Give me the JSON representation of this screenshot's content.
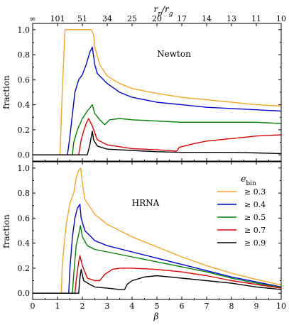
{
  "chart_data": [
    {
      "type": "line",
      "panel": "top",
      "annotation": "Newton",
      "ylabel": "fraction",
      "xlim": [
        0,
        10
      ],
      "ylim": [
        -0.05,
        1.05
      ],
      "yticks": [
        "0.0",
        "0.2",
        "0.4",
        "0.6",
        "0.8",
        "1.0"
      ],
      "top_axis": {
        "label": "r_p/r_g",
        "tick_labels": [
          "∞",
          "101",
          "51",
          "34",
          "25",
          "20",
          "17",
          "14",
          "13",
          "11",
          "10"
        ]
      },
      "series": [
        {
          "name": "≥ 0.3",
          "color": "#f5a623",
          "points": [
            [
              0,
              0
            ],
            [
              1.1,
              0
            ],
            [
              1.2,
              0.55
            ],
            [
              1.3,
              1.0
            ],
            [
              2.35,
              1.0
            ],
            [
              2.45,
              0.96
            ],
            [
              2.5,
              0.86
            ],
            [
              2.7,
              0.72
            ],
            [
              3.0,
              0.63
            ],
            [
              3.5,
              0.57
            ],
            [
              4.0,
              0.53
            ],
            [
              5.0,
              0.49
            ],
            [
              6.0,
              0.46
            ],
            [
              7.0,
              0.44
            ],
            [
              8.0,
              0.42
            ],
            [
              9.0,
              0.4
            ],
            [
              10.0,
              0.39
            ]
          ]
        },
        {
          "name": "≥ 0.4",
          "color": "#0000e0",
          "points": [
            [
              0,
              0
            ],
            [
              1.4,
              0
            ],
            [
              1.5,
              0.15
            ],
            [
              1.7,
              0.5
            ],
            [
              1.85,
              0.6
            ],
            [
              2.0,
              0.64
            ],
            [
              2.15,
              0.72
            ],
            [
              2.3,
              0.82
            ],
            [
              2.4,
              0.86
            ],
            [
              2.5,
              0.72
            ],
            [
              2.6,
              0.65
            ],
            [
              3.0,
              0.57
            ],
            [
              3.5,
              0.5
            ],
            [
              4.0,
              0.46
            ],
            [
              5.0,
              0.42
            ],
            [
              6.0,
              0.4
            ],
            [
              7.0,
              0.38
            ],
            [
              8.0,
              0.37
            ],
            [
              9.0,
              0.36
            ],
            [
              10.0,
              0.35
            ]
          ]
        },
        {
          "name": "≥ 0.5",
          "color": "#008000",
          "points": [
            [
              0,
              0
            ],
            [
              1.6,
              0
            ],
            [
              1.65,
              0.1
            ],
            [
              1.8,
              0.2
            ],
            [
              2.0,
              0.29
            ],
            [
              2.2,
              0.35
            ],
            [
              2.4,
              0.4
            ],
            [
              2.5,
              0.33
            ],
            [
              2.7,
              0.28
            ],
            [
              2.9,
              0.24
            ],
            [
              3.0,
              0.26
            ],
            [
              3.1,
              0.28
            ],
            [
              3.5,
              0.29
            ],
            [
              4.0,
              0.28
            ],
            [
              5.0,
              0.27
            ],
            [
              6.0,
              0.26
            ],
            [
              7.0,
              0.26
            ],
            [
              8.0,
              0.26
            ],
            [
              9.0,
              0.26
            ],
            [
              10.0,
              0.25
            ]
          ]
        },
        {
          "name": "≥ 0.7",
          "color": "#e00000",
          "points": [
            [
              0,
              0
            ],
            [
              1.85,
              0
            ],
            [
              1.95,
              0.12
            ],
            [
              2.05,
              0.19
            ],
            [
              2.15,
              0.25
            ],
            [
              2.25,
              0.29
            ],
            [
              2.4,
              0.23
            ],
            [
              2.6,
              0.12
            ],
            [
              3.0,
              0.08
            ],
            [
              4.0,
              0.05
            ],
            [
              5.0,
              0.04
            ],
            [
              5.8,
              0.03
            ],
            [
              5.9,
              0.06
            ],
            [
              6.5,
              0.09
            ],
            [
              7.0,
              0.11
            ],
            [
              8.0,
              0.13
            ],
            [
              9.0,
              0.15
            ],
            [
              10.0,
              0.16
            ]
          ]
        },
        {
          "name": "≥ 0.9",
          "color": "#000000",
          "points": [
            [
              0,
              0
            ],
            [
              2.2,
              0
            ],
            [
              2.3,
              0.08
            ],
            [
              2.4,
              0.19
            ],
            [
              2.45,
              0.12
            ],
            [
              2.6,
              0.07
            ],
            [
              3.0,
              0.045
            ],
            [
              4.0,
              0.035
            ],
            [
              5.0,
              0.025
            ],
            [
              6.0,
              0.02
            ],
            [
              7.0,
              0.02
            ],
            [
              8.0,
              0.02
            ],
            [
              9.0,
              0.015
            ],
            [
              10.0,
              0.01
            ]
          ]
        }
      ]
    },
    {
      "type": "line",
      "panel": "bottom",
      "annotation": "HRNA",
      "xlabel": "β",
      "ylabel": "fraction",
      "xlim": [
        0,
        10
      ],
      "ylim": [
        -0.05,
        1.05
      ],
      "xticks": [
        "0",
        "1",
        "2",
        "3",
        "4",
        "5",
        "6",
        "7",
        "8",
        "9",
        "10"
      ],
      "yticks": [
        "0.0",
        "0.2",
        "0.4",
        "0.6",
        "0.8",
        "1.0"
      ],
      "legend": {
        "title": "e_bin",
        "placement": "right"
      },
      "series": [
        {
          "name": "≥ 0.3",
          "color": "#f5a623",
          "points": [
            [
              0,
              0
            ],
            [
              1.15,
              0
            ],
            [
              1.2,
              0.25
            ],
            [
              1.35,
              0.55
            ],
            [
              1.5,
              0.72
            ],
            [
              1.65,
              0.8
            ],
            [
              1.75,
              0.92
            ],
            [
              1.85,
              0.98
            ],
            [
              1.93,
              1.0
            ],
            [
              2.0,
              0.88
            ],
            [
              2.1,
              0.75
            ],
            [
              2.5,
              0.63
            ],
            [
              3.0,
              0.55
            ],
            [
              4.0,
              0.45
            ],
            [
              5.0,
              0.37
            ],
            [
              6.0,
              0.29
            ],
            [
              7.0,
              0.22
            ],
            [
              8.0,
              0.16
            ],
            [
              9.0,
              0.11
            ],
            [
              10.0,
              0.065
            ]
          ]
        },
        {
          "name": "≥ 0.4",
          "color": "#0000e0",
          "points": [
            [
              0,
              0
            ],
            [
              1.45,
              0
            ],
            [
              1.5,
              0.2
            ],
            [
              1.6,
              0.45
            ],
            [
              1.7,
              0.6
            ],
            [
              1.8,
              0.68
            ],
            [
              1.9,
              0.71
            ],
            [
              1.95,
              0.6
            ],
            [
              2.1,
              0.5
            ],
            [
              2.5,
              0.42
            ],
            [
              3.0,
              0.38
            ],
            [
              4.0,
              0.33
            ],
            [
              5.0,
              0.28
            ],
            [
              6.0,
              0.23
            ],
            [
              7.0,
              0.18
            ],
            [
              8.0,
              0.13
            ],
            [
              9.0,
              0.09
            ],
            [
              10.0,
              0.05
            ]
          ]
        },
        {
          "name": "≥ 0.5",
          "color": "#008000",
          "points": [
            [
              0,
              0
            ],
            [
              1.6,
              0
            ],
            [
              1.65,
              0.15
            ],
            [
              1.75,
              0.38
            ],
            [
              1.85,
              0.47
            ],
            [
              1.92,
              0.54
            ],
            [
              2.0,
              0.45
            ],
            [
              2.2,
              0.38
            ],
            [
              2.5,
              0.35
            ],
            [
              3.0,
              0.33
            ],
            [
              4.0,
              0.29
            ],
            [
              5.0,
              0.25
            ],
            [
              6.0,
              0.21
            ],
            [
              7.0,
              0.17
            ],
            [
              8.0,
              0.12
            ],
            [
              9.0,
              0.08
            ],
            [
              10.0,
              0.045
            ]
          ]
        },
        {
          "name": "≥ 0.7",
          "color": "#e00000",
          "points": [
            [
              0,
              0
            ],
            [
              1.7,
              0
            ],
            [
              1.75,
              0.1
            ],
            [
              1.85,
              0.25
            ],
            [
              1.9,
              0.3
            ],
            [
              2.0,
              0.22
            ],
            [
              2.2,
              0.12
            ],
            [
              2.5,
              0.1
            ],
            [
              2.7,
              0.1
            ],
            [
              2.9,
              0.15
            ],
            [
              3.2,
              0.19
            ],
            [
              3.5,
              0.2
            ],
            [
              4.0,
              0.2
            ],
            [
              5.0,
              0.19
            ],
            [
              6.0,
              0.17
            ],
            [
              7.0,
              0.14
            ],
            [
              8.0,
              0.1
            ],
            [
              9.0,
              0.07
            ],
            [
              10.0,
              0.04
            ]
          ]
        },
        {
          "name": "≥ 0.9",
          "color": "#000000",
          "points": [
            [
              0,
              0
            ],
            [
              1.85,
              0
            ],
            [
              1.9,
              0.12
            ],
            [
              1.95,
              0.19
            ],
            [
              2.05,
              0.1
            ],
            [
              2.3,
              0.07
            ],
            [
              2.5,
              0.05
            ],
            [
              3.0,
              0.04
            ],
            [
              3.5,
              0.03
            ],
            [
              3.7,
              0.03
            ],
            [
              3.8,
              0.07
            ],
            [
              4.0,
              0.1
            ],
            [
              4.5,
              0.13
            ],
            [
              5.0,
              0.14
            ],
            [
              6.0,
              0.12
            ],
            [
              7.0,
              0.1
            ],
            [
              8.0,
              0.08
            ],
            [
              9.0,
              0.05
            ],
            [
              10.0,
              0.03
            ]
          ]
        }
      ]
    }
  ]
}
